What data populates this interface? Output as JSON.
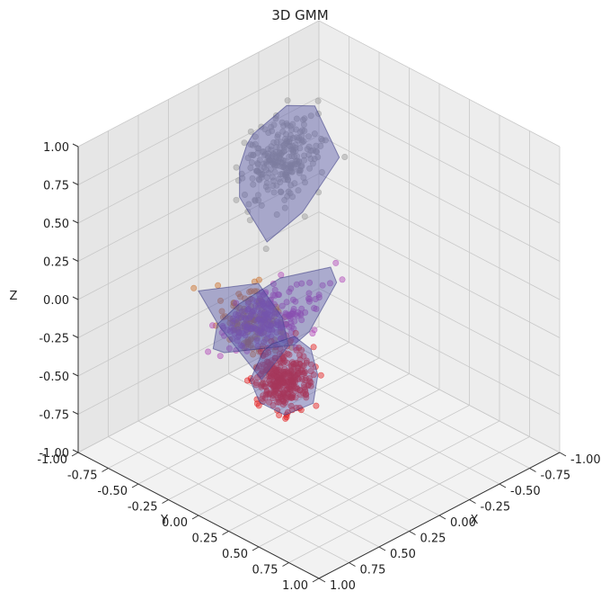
{
  "chart_data": {
    "type": "scatter",
    "projection": "3d",
    "title": "3D GMM",
    "xlabel": "X",
    "ylabel": "Y",
    "zlabel": "Z",
    "xlim": [
      -1.0,
      1.0
    ],
    "ylim": [
      -1.0,
      1.0
    ],
    "zlim": [
      -1.0,
      1.0
    ],
    "x_ticks": [
      "-1.00",
      "-0.75",
      "-0.50",
      "-0.25",
      "0.00",
      "0.25",
      "0.50",
      "0.75",
      "1.00"
    ],
    "y_ticks": [
      "-1.00",
      "-0.75",
      "-0.50",
      "-0.25",
      "0.00",
      "0.25",
      "0.50",
      "0.75",
      "1.00"
    ],
    "z_ticks": [
      "-1.00",
      "-0.75",
      "-0.50",
      "-0.25",
      "0.00",
      "0.25",
      "0.50",
      "0.75",
      "1.00"
    ],
    "grid": true,
    "hull_color": "#5a5aa8",
    "clusters": [
      {
        "color": "#999999",
        "center": [
          -0.55,
          -0.85,
          0.35
        ],
        "spread": [
          0.2,
          0.1,
          0.18
        ],
        "n": 260
      },
      {
        "color": "#cc6f2a",
        "center": [
          0.35,
          -0.2,
          -0.1
        ],
        "spread": [
          0.12,
          0.15,
          0.15
        ],
        "n": 130
      },
      {
        "color": "#b044b8",
        "center": [
          0.15,
          -0.25,
          -0.15
        ],
        "spread": [
          0.25,
          0.1,
          0.12
        ],
        "n": 220
      },
      {
        "color": "#e31a1c",
        "center": [
          0.55,
          0.25,
          -0.2
        ],
        "spread": [
          0.12,
          0.1,
          0.12
        ],
        "n": 320
      }
    ]
  }
}
